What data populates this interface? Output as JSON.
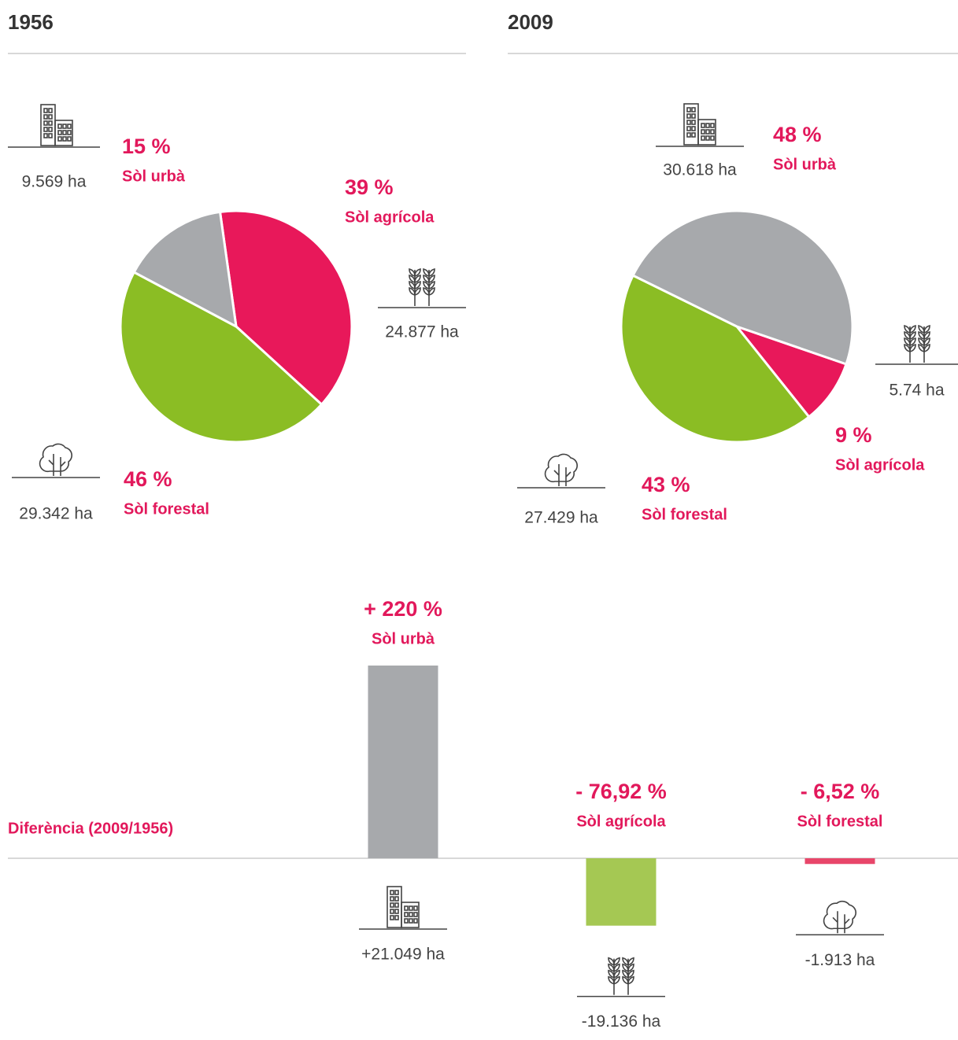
{
  "chart_data": [
    {
      "type": "pie",
      "title": "1956",
      "categories": [
        "Sòl agrícola",
        "Sòl forestal",
        "Sòl urbà"
      ],
      "values": [
        39,
        46,
        15
      ],
      "value_labels": [
        "39 %",
        "46 %",
        "15 %"
      ],
      "area_labels": [
        "24.877 ha",
        "29.342 ha",
        "9.569 ha"
      ],
      "colors": [
        "#e8185a",
        "#8bbd24",
        "#a7a9ac"
      ]
    },
    {
      "type": "pie",
      "title": "2009",
      "categories": [
        "Sòl agrícola",
        "Sòl forestal",
        "Sòl urbà"
      ],
      "values": [
        9,
        43,
        48
      ],
      "value_labels": [
        "9 %",
        "43 %",
        "48 %"
      ],
      "area_labels": [
        "5.74 ha",
        "27.429 ha",
        "30.618 ha"
      ],
      "colors": [
        "#e8185a",
        "#8bbd24",
        "#a7a9ac"
      ]
    },
    {
      "type": "bar",
      "title": "Diferència (2009/1956)",
      "categories": [
        "Sòl urbà",
        "Sòl agrícola",
        "Sòl forestal"
      ],
      "values": [
        220,
        -76.92,
        -6.52
      ],
      "value_labels": [
        "+ 220 %",
        "- 76,92 %",
        "- 6,52 %"
      ],
      "area_labels": [
        "+21.049 ha",
        "-19.136 ha",
        "-1.913 ha"
      ],
      "colors": [
        "#a7a9ac",
        "#a5c853",
        "#e8466a"
      ]
    }
  ]
}
